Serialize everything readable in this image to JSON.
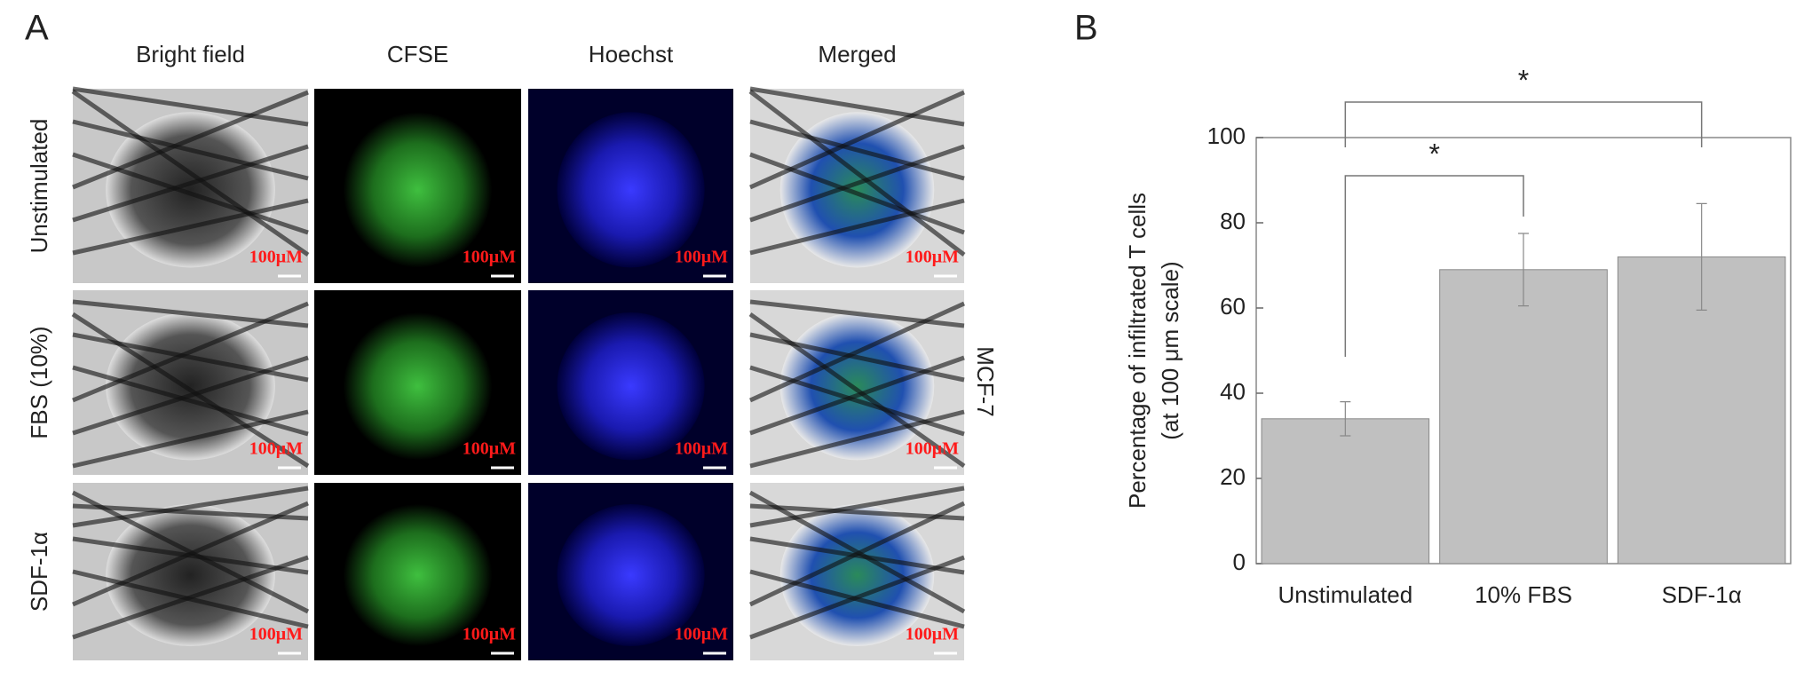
{
  "panel_a": {
    "panel_label": "A",
    "columns": [
      "Bright field",
      "CFSE",
      "Hoechst",
      "Merged"
    ],
    "rows": [
      "Unstimulated",
      "FBS (10%)",
      "SDF-1α"
    ],
    "side_label": "MCF-7",
    "scale_bar_label": "100μM"
  },
  "chart_data": {
    "type": "bar",
    "panel_label": "B",
    "ylabel": [
      "Percentage of infiltrated T cells",
      "(at 100 μm scale)"
    ],
    "categories": [
      "Unstimulated",
      "10% FBS",
      "SDF-1α"
    ],
    "values": [
      34,
      69,
      72
    ],
    "errors": [
      4,
      8.5,
      12.5
    ],
    "color": "#c0c0c0",
    "ylim": [
      0,
      100
    ],
    "yticks": [
      0,
      20,
      40,
      60,
      80,
      100
    ],
    "annotations": [
      "*",
      "*"
    ]
  }
}
